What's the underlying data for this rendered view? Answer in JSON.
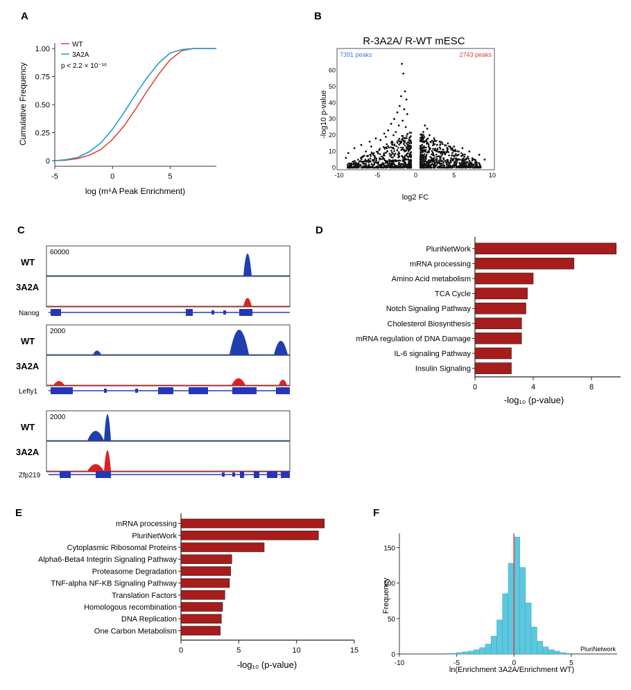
{
  "colors": {
    "wt": "#e8403c",
    "a3a2a": "#1e9bc8",
    "bar": "#a81c1c",
    "track_wt": "#1f3fb0",
    "track_3a2a": "#e02020",
    "gene": "#2536b8",
    "hist": "#5bc8e0",
    "hist_line": "#e04030"
  },
  "panels": {
    "a": {
      "letter": "A",
      "chart_data": {
        "type": "line",
        "xlabel": "log (m⁶A Peak Enrichment)",
        "ylabel": "Cumulative Frequency",
        "xlim": [
          -5,
          9
        ],
        "ylim": [
          0,
          1
        ],
        "x_ticks": [
          "-5",
          "0",
          "5"
        ],
        "y_ticks": [
          "0",
          "0.25",
          "0.50",
          "0.75",
          "1.00"
        ],
        "legend": [
          "WT",
          "3A2A"
        ],
        "annotation": "p < 2.2 × 10⁻¹⁶",
        "series": [
          {
            "name": "WT",
            "color_key": "wt",
            "x": [
              -5,
              -4,
              -3,
              -2,
              -1,
              0,
              1,
              2,
              3,
              4,
              5,
              6,
              7,
              8,
              9
            ],
            "y": [
              0,
              0.005,
              0.02,
              0.05,
              0.1,
              0.19,
              0.31,
              0.46,
              0.62,
              0.77,
              0.9,
              0.98,
              1.0,
              1.0,
              1.0
            ]
          },
          {
            "name": "3A2A",
            "color_key": "a3a2a",
            "x": [
              -5,
              -4,
              -3,
              -2,
              -1,
              0,
              1,
              2,
              3,
              4,
              5,
              6,
              7,
              8,
              9
            ],
            "y": [
              0,
              0.01,
              0.03,
              0.08,
              0.16,
              0.28,
              0.43,
              0.59,
              0.74,
              0.87,
              0.96,
              0.99,
              1.0,
              1.0,
              1.0
            ]
          }
        ]
      }
    },
    "b": {
      "letter": "B",
      "chart_data": {
        "type": "scatter",
        "title": "R-3A2A/ R-WT mESC",
        "xlabel": "log2 FC",
        "ylabel": "-log10 p-value",
        "xlim": [
          -10,
          10
        ],
        "ylim": [
          0,
          70
        ],
        "x_ticks": [
          "-10",
          "-5",
          "0",
          "5",
          "10"
        ],
        "y_ticks": [
          "0",
          "10",
          "20",
          "30",
          "40",
          "50",
          "60"
        ],
        "left_count": "7391 peaks",
        "right_count": "2743 peaks",
        "points": [
          [
            -1.8,
            64
          ],
          [
            -1.6,
            58
          ],
          [
            -1.4,
            47
          ],
          [
            -1.9,
            44
          ],
          [
            -1.2,
            42
          ],
          [
            -2.1,
            38
          ],
          [
            -1.5,
            36
          ],
          [
            -2.4,
            34
          ],
          [
            -1.1,
            33
          ],
          [
            -2.8,
            30
          ],
          [
            -1.7,
            29
          ],
          [
            -3.2,
            27
          ],
          [
            -2.2,
            26
          ],
          [
            -1.3,
            25
          ],
          [
            -3.6,
            23
          ],
          [
            -4.1,
            21
          ],
          [
            -2.6,
            22
          ],
          [
            -5.2,
            18
          ],
          [
            -6.0,
            16
          ],
          [
            -7.1,
            14
          ],
          [
            -8.0,
            12
          ],
          [
            -3.9,
            19
          ],
          [
            -4.6,
            17
          ],
          [
            -5.8,
            13
          ],
          [
            -2.9,
            20
          ],
          [
            1.2,
            26
          ],
          [
            1.5,
            24
          ],
          [
            1.0,
            22
          ],
          [
            1.8,
            20
          ],
          [
            2.4,
            18
          ],
          [
            3.1,
            16
          ],
          [
            4.2,
            15
          ],
          [
            5.0,
            13
          ],
          [
            6.1,
            12
          ],
          [
            7.0,
            10
          ],
          [
            2.8,
            14
          ],
          [
            3.6,
            11
          ],
          [
            1.4,
            17
          ],
          [
            0.9,
            19
          ],
          [
            8.3,
            8
          ],
          [
            -8.8,
            9
          ],
          [
            -9.1,
            6
          ],
          [
            9.0,
            5
          ],
          [
            4.8,
            9
          ],
          [
            -6.5,
            10
          ],
          [
            5.6,
            8
          ],
          [
            -1.4,
            16
          ],
          [
            -2.0,
            15
          ],
          [
            1.7,
            13
          ]
        ],
        "band_left": [
          -9,
          -0.6
        ],
        "band_right": [
          0.6,
          8.5
        ]
      }
    },
    "c": {
      "letter": "C",
      "genes": [
        {
          "name": "Nanog",
          "wt_label": "WT",
          "mut_label": "3A2A",
          "scale": "60000"
        },
        {
          "name": "Lefty1",
          "wt_label": "WT",
          "mut_label": "3A2A",
          "scale": "2000"
        },
        {
          "name": "Zfp219",
          "wt_label": "WT",
          "mut_label": "3A2A",
          "scale": "2000"
        }
      ]
    },
    "d": {
      "letter": "D",
      "chart_data": {
        "type": "bar",
        "orientation": "horizontal",
        "xlabel": "-log₁₀ (p-value)",
        "xlim": [
          0,
          10
        ],
        "x_ticks": [
          "0",
          "4",
          "8"
        ],
        "categories": [
          "PluriNetWork",
          "mRNA processing",
          "Amino Acid metabolism",
          "TCA Cycle",
          "Notch Signaling Pathway",
          "Cholesterol Biosynthesis",
          "mRNA regulation of DNA Damage",
          "IL-6 signaling Pathway",
          "Insulin Signaling"
        ],
        "values": [
          9.7,
          6.8,
          4.0,
          3.6,
          3.5,
          3.2,
          3.2,
          2.5,
          2.5
        ]
      }
    },
    "e": {
      "letter": "E",
      "chart_data": {
        "type": "bar",
        "orientation": "horizontal",
        "xlabel": "-log₁₀ (p-value)",
        "xlim": [
          0,
          15
        ],
        "x_ticks": [
          "0",
          "5",
          "10",
          "15"
        ],
        "categories": [
          "mRNA processing",
          "PluriNetWork",
          "Cytoplasmic Ribosomal Proteins",
          "Alpha6-Beta4 Integrin Signaling Pathway",
          "Proteasome Degradation",
          "TNF-alpha NF-KB Signaling Pathway",
          "Translation Factors",
          "Homologous recombination",
          "DNA Replication",
          "One Carbon Metabolism"
        ],
        "values": [
          12.4,
          11.9,
          7.2,
          4.4,
          4.3,
          4.2,
          3.8,
          3.6,
          3.5,
          3.4
        ]
      }
    },
    "f": {
      "letter": "F",
      "chart_data": {
        "type": "bar",
        "style": "histogram",
        "xlabel": "ln(Enrichment 3A2A/Enrichment WT)",
        "ylabel": "Frequency",
        "xlim": [
          -10,
          9
        ],
        "ylim": [
          0,
          170
        ],
        "x_ticks": [
          "-10",
          "-5",
          "0",
          "5"
        ],
        "y_ticks": [
          "0",
          "50",
          "100",
          "150"
        ],
        "bin_width": 0.5,
        "bin_starts": [
          -6,
          -5.5,
          -5,
          -4.5,
          -4,
          -3.5,
          -3,
          -2.5,
          -2,
          -1.5,
          -1,
          -0.5,
          0,
          0.5,
          1,
          1.5,
          2,
          2.5,
          3,
          3.5,
          4,
          4.5
        ],
        "values": [
          1,
          1,
          2,
          3,
          4,
          6,
          9,
          14,
          25,
          48,
          85,
          128,
          165,
          122,
          72,
          38,
          18,
          10,
          6,
          4,
          2,
          1
        ],
        "marker_x": 0,
        "marker_label": "PluriNetwork"
      }
    }
  }
}
